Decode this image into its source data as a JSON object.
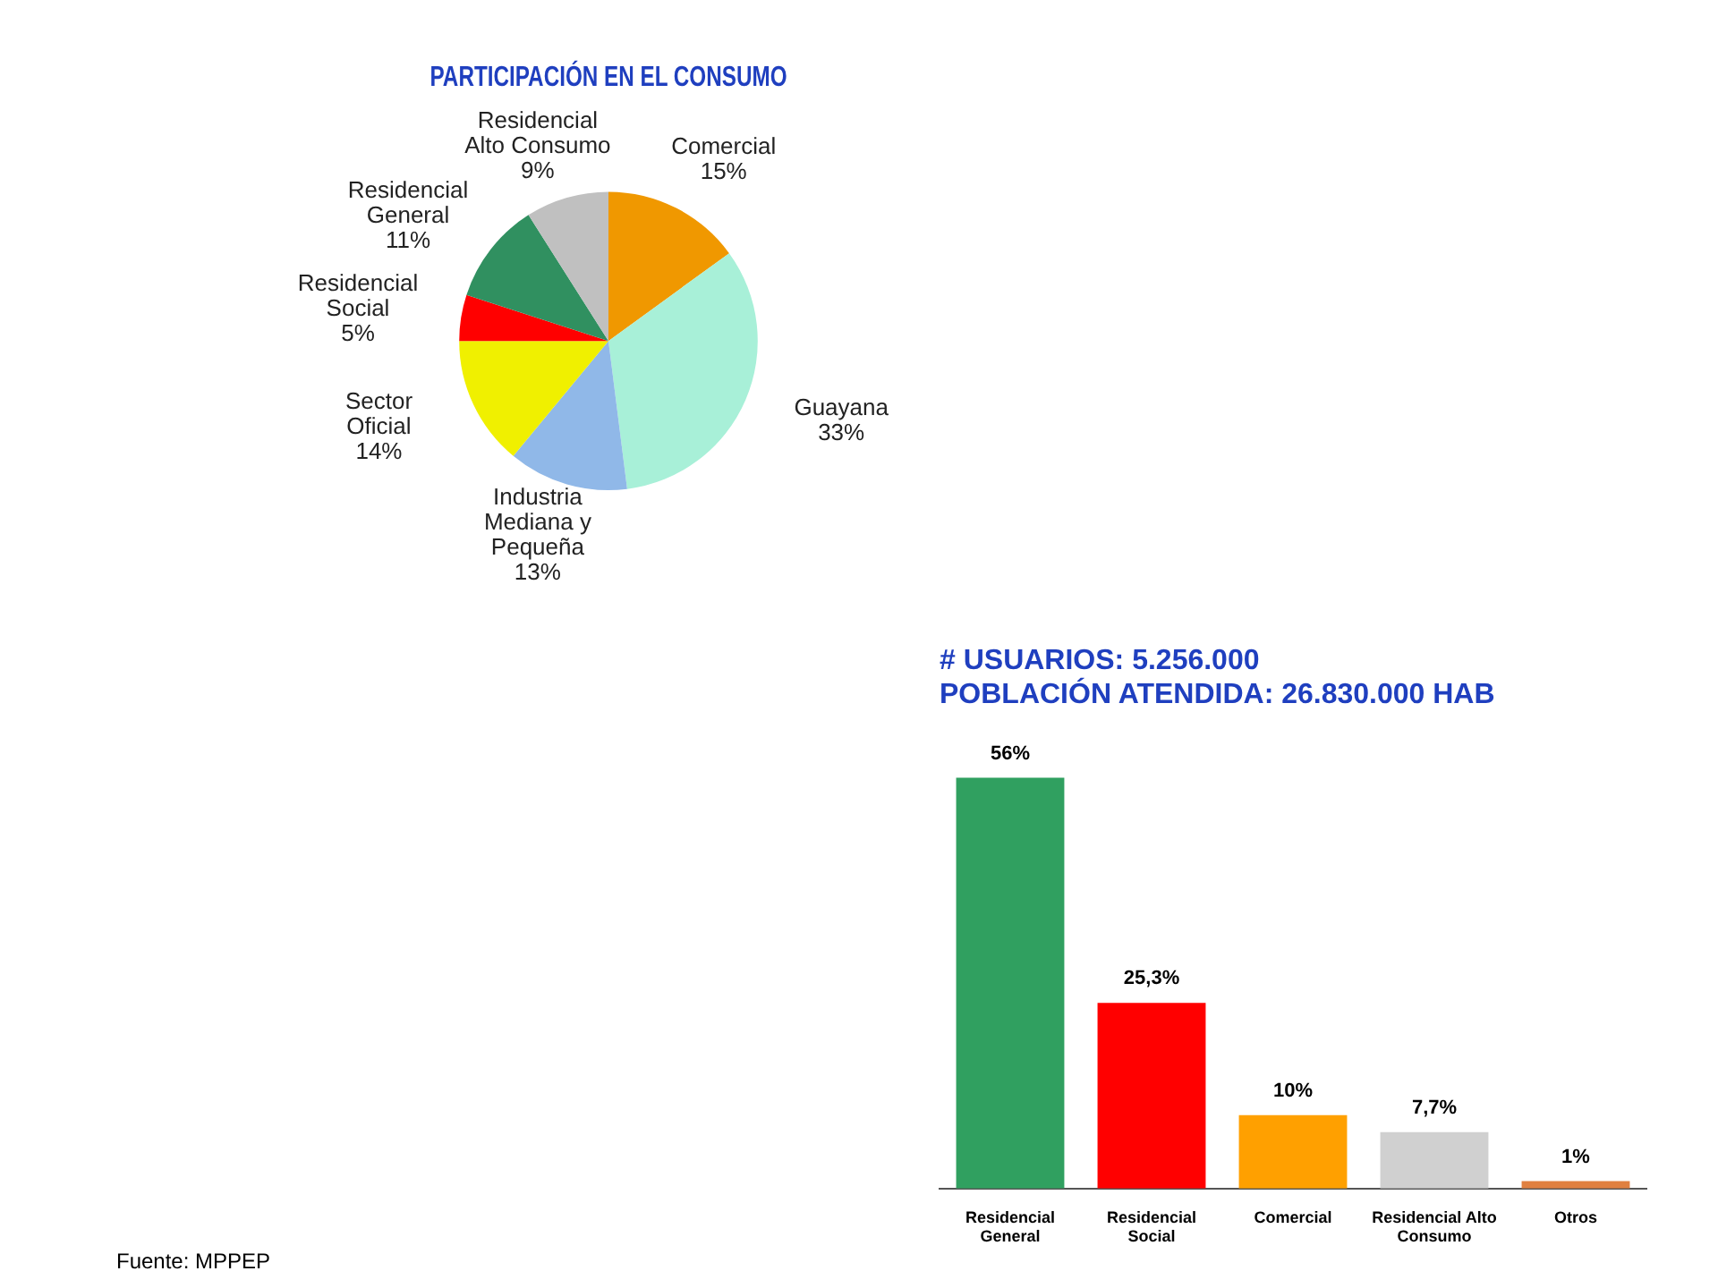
{
  "chart_data": [
    {
      "type": "pie",
      "title": "PARTICIPACIÓN EN EL CONSUMO",
      "categories": [
        "Comercial",
        "Guayana",
        "Industria Mediana y Pequeña",
        "Sector Oficial",
        "Residencial Social",
        "Residencial General",
        "Residencial Alto Consumo"
      ],
      "values": [
        15,
        33,
        13,
        14,
        5,
        11,
        9
      ],
      "value_labels": [
        "15%",
        "33%",
        "13%",
        "14%",
        "5%",
        "11%",
        "9%"
      ],
      "colors": [
        "#f09800",
        "#a8f0d8",
        "#90b8e8",
        "#f0f000",
        "#ff0000",
        "#309060",
        "#c0c0c0"
      ],
      "legend": false,
      "annotations": [
        "Fuente: MPPEP"
      ]
    },
    {
      "type": "bar",
      "title": "# USUARIOS: 5.256.000",
      "subtitle": "POBLACIÓN ATENDIDA: 26.830.000 HAB",
      "categories": [
        "Residencial General",
        "Residencial Social",
        "Comercial",
        "Residencial Alto Consumo",
        "Otros"
      ],
      "values": [
        56,
        25.3,
        10,
        7.7,
        1
      ],
      "value_labels": [
        "56%",
        "25,3%",
        "10%",
        "7,7%",
        "1%"
      ],
      "colors": [
        "#30a060",
        "#ff0000",
        "#ffa000",
        "#d0d0d0",
        "#e08040"
      ],
      "tick_labels": "x",
      "grid": false,
      "legend": false
    }
  ]
}
